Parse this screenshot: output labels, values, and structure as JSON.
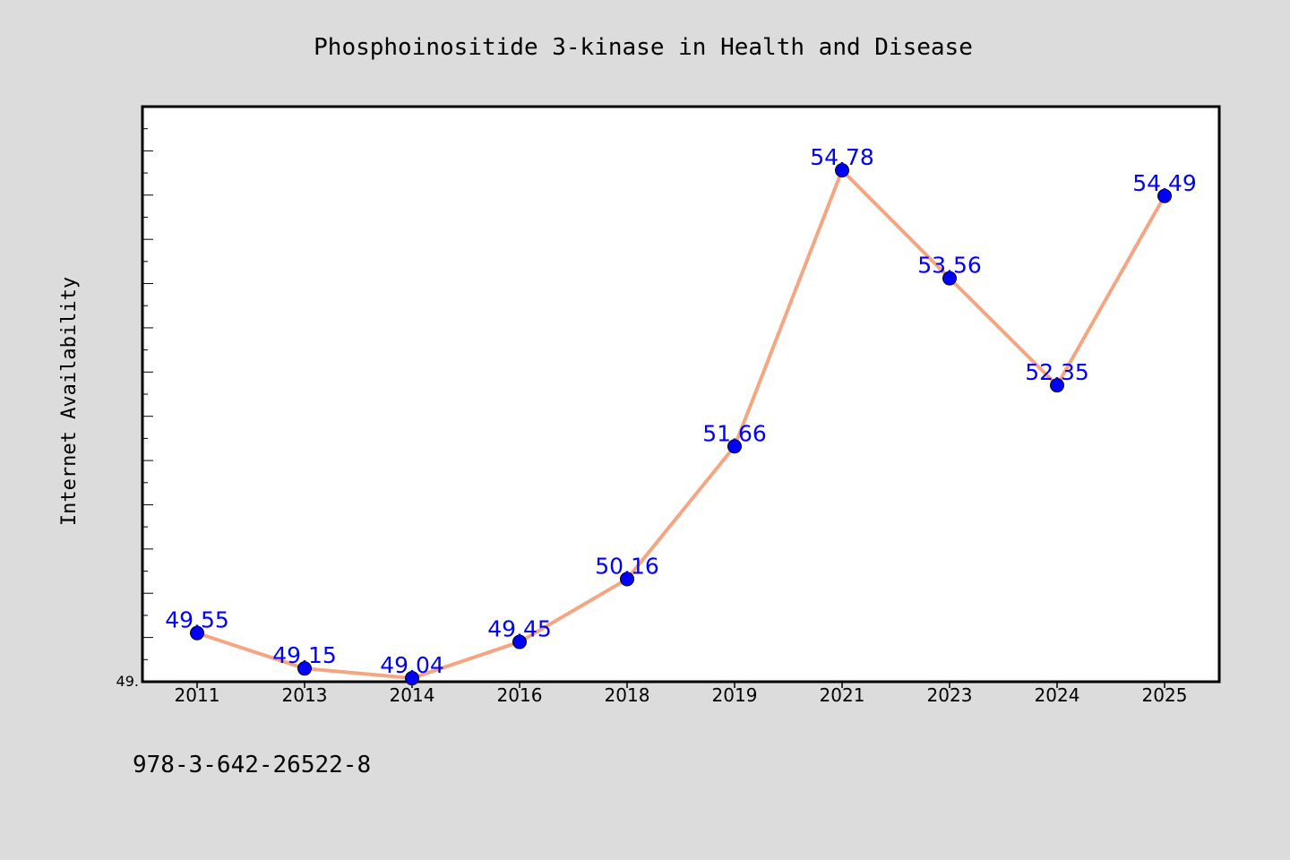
{
  "chart_data": {
    "type": "line",
    "title": "Phosphoinositide 3-kinase in Health and Disease",
    "xlabel": "",
    "ylabel": "Internet Availability",
    "categories": [
      "2011",
      "2013",
      "2014",
      "2016",
      "2018",
      "2019",
      "2021",
      "2023",
      "2024",
      "2025"
    ],
    "values": [
      49.55,
      49.15,
      49.04,
      49.45,
      50.16,
      51.66,
      54.78,
      53.56,
      52.35,
      54.49
    ],
    "value_labels": [
      "49.55",
      "49.15",
      "49.04",
      "49.45",
      "50.16",
      "51.66",
      "54.78",
      "53.56",
      "52.35",
      "54.49"
    ],
    "ytick_label": "49.",
    "ylim": [
      49.0,
      55.5
    ],
    "grid": false,
    "line_color": "#f4a582",
    "marker_color": "#0000ff",
    "label_color": "#0000ff"
  },
  "footer": {
    "isbn": "978-3-642-26522-8"
  }
}
